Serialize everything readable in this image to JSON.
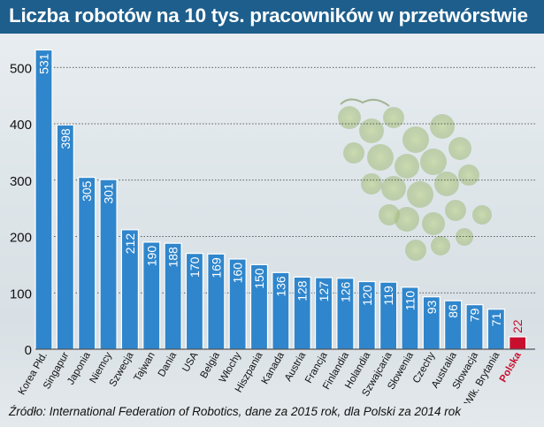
{
  "title": "Liczba robotów na 10 tys. pracowników w przetwórstwie",
  "source": "Źródło: International Federation of Robotics, dane za 2015 rok, dla Polski za 2014 rok",
  "colors": {
    "header": "#1d5e8c",
    "bar": "#2f86cc",
    "highlight": "#c8102e"
  },
  "chart_data": {
    "type": "bar",
    "title": "Liczba robotów na 10 tys. pracowników w przetwórstwie",
    "xlabel": "",
    "ylabel": "",
    "ylim": [
      0,
      560
    ],
    "yticks": [
      0,
      100,
      200,
      300,
      400,
      500
    ],
    "grid": true,
    "categories": [
      "Korea Płd.",
      "Singapur",
      "Japonia",
      "Niemcy",
      "Szwecja",
      "Tajwan",
      "Dania",
      "USA",
      "Belgia",
      "Włochy",
      "Hiszpania",
      "Kanada",
      "Austria",
      "Francja",
      "Finlandia",
      "Holandia",
      "Szwajcaria",
      "Słowenia",
      "Czechy",
      "Australia",
      "Słowacja",
      "Wlk. Brytania",
      "Polska"
    ],
    "values": [
      531,
      398,
      305,
      301,
      212,
      190,
      188,
      170,
      169,
      160,
      150,
      136,
      128,
      127,
      126,
      120,
      119,
      110,
      93,
      86,
      79,
      71,
      22
    ],
    "highlight": "Polska"
  }
}
